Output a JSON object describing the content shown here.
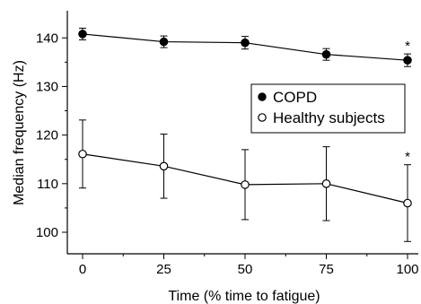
{
  "chart_data": {
    "type": "line",
    "xlabel": "Time (% time to fatigue)",
    "ylabel": "Median frequency (Hz)",
    "x": [
      0,
      25,
      50,
      75,
      100
    ],
    "xlim": [
      -5,
      105
    ],
    "ylim": [
      96,
      145
    ],
    "x_ticks": [
      0,
      25,
      50,
      75,
      100
    ],
    "y_ticks": [
      100,
      110,
      120,
      130,
      140
    ],
    "grid": false,
    "legend_position": "middle-right",
    "series": [
      {
        "name": "COPD",
        "marker": "filled-circle",
        "values": [
          140.8,
          139.2,
          139.0,
          136.6,
          135.4
        ],
        "error_bars": [
          1.2,
          1.2,
          1.3,
          1.2,
          1.3
        ],
        "significance": [
          "",
          "",
          "",
          "",
          "*"
        ]
      },
      {
        "name": "Healthy subjects",
        "marker": "open-circle",
        "values": [
          116.1,
          113.6,
          109.8,
          110.0,
          106.0
        ],
        "error_bars": [
          7.0,
          6.6,
          7.2,
          7.6,
          7.9
        ],
        "significance": [
          "",
          "",
          "",
          "",
          "*"
        ]
      }
    ]
  }
}
